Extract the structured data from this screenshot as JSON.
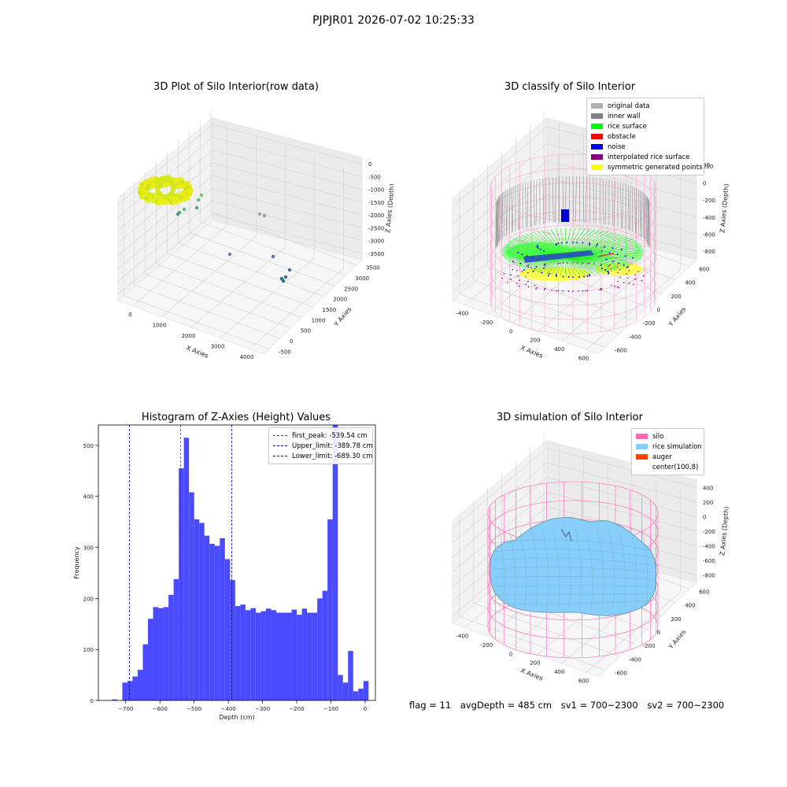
{
  "suptitle": "PJPJR01 2026-07-02 10:25:33",
  "footer": {
    "flag": "flag = 11",
    "avg_depth": "avgDepth = 485 cm",
    "sv1": "sv1 = 700~2300",
    "sv2": "sv2 = 700~2300"
  },
  "colors": {
    "histogram_bar": "#4a4aff",
    "first_peak": "#ff0000",
    "limits": "#0000aa",
    "silo": "#ff69b4",
    "rice_sim": "#87cefa",
    "auger": "#ff4500",
    "grid_pane": "#f2f2f2"
  },
  "chart_data": [
    {
      "type": "scatter3d",
      "title": "3D Plot of Silo Interior(row data)",
      "xlabel": "X Axies",
      "ylabel": "Y Axies",
      "zlabel": "Z Axies (Depth)",
      "x_ticks": [
        "0",
        "1000",
        "2000",
        "3000",
        "4000"
      ],
      "y_ticks": [
        "-500",
        "0",
        "500",
        "1000",
        "1500",
        "2000",
        "2500",
        "3000",
        "3500"
      ],
      "z_ticks": [
        "0",
        "-500",
        "-1000",
        "-1500",
        "-2000",
        "-2500",
        "-3000",
        "-3500"
      ]
    },
    {
      "type": "scatter3d",
      "title": "3D classify of Silo Interior",
      "xlabel": "X Axies",
      "ylabel": "Y Axies",
      "zlabel": "Z Axies (Depth)",
      "x_ticks": [
        "-400",
        "-200",
        "0",
        "200",
        "400",
        "600"
      ],
      "y_ticks": [
        "-600",
        "-400",
        "-200",
        "0",
        "200",
        "400",
        "600"
      ],
      "z_ticks": [
        "200",
        "0",
        "-200",
        "-400",
        "-600",
        "-800"
      ],
      "z_top_tick": "00",
      "legend": [
        {
          "label": "original data",
          "color": "#b0b0b0"
        },
        {
          "label": "inner wall",
          "color": "#808080"
        },
        {
          "label": "rice surface",
          "color": "#00ff00"
        },
        {
          "label": "obstacle",
          "color": "#ff0000"
        },
        {
          "label": "noise",
          "color": "#0000ee"
        },
        {
          "label": "interpolated rice surface",
          "color": "#800080"
        },
        {
          "label": "symmetric generated points",
          "color": "#ffff00"
        }
      ]
    },
    {
      "type": "bar",
      "title": "Histogram of Z-Axies (Height) Values",
      "xlabel": "Depth (cm)",
      "ylabel": "Frequency",
      "xlim": [
        -780,
        30
      ],
      "ylim": [
        0,
        540
      ],
      "bin_width": 15,
      "x_ticks": [
        -700,
        -600,
        -500,
        -400,
        -300,
        -200,
        -100,
        0
      ],
      "y_ticks": [
        0,
        100,
        200,
        300,
        400,
        500
      ],
      "bin_starts": [
        -740,
        -725,
        -710,
        -695,
        -680,
        -665,
        -650,
        -635,
        -620,
        -605,
        -590,
        -575,
        -560,
        -545,
        -530,
        -515,
        -500,
        -485,
        -470,
        -455,
        -440,
        -425,
        -410,
        -395,
        -380,
        -365,
        -350,
        -335,
        -320,
        -305,
        -290,
        -275,
        -260,
        -245,
        -230,
        -215,
        -200,
        -185,
        -170,
        -155,
        -140,
        -125,
        -110,
        -95,
        -80,
        -65,
        -50,
        -35,
        -20,
        -5
      ],
      "values": [
        2,
        0,
        35,
        38,
        47,
        60,
        110,
        160,
        183,
        181,
        183,
        207,
        238,
        455,
        515,
        408,
        355,
        348,
        323,
        307,
        303,
        318,
        277,
        236,
        185,
        188,
        177,
        181,
        172,
        175,
        180,
        177,
        172,
        172,
        172,
        178,
        168,
        180,
        172,
        172,
        200,
        215,
        355,
        545,
        50,
        35,
        97,
        18,
        23,
        38
      ],
      "vlines": [
        {
          "label": "first_peak: -539.54 cm",
          "x": -539.54,
          "color": "#ff0000"
        },
        {
          "label": "Upper_limit: -389.78 cm",
          "x": -389.78,
          "color": "#0000aa"
        },
        {
          "label": "Lower_limit: -689.30 cm",
          "x": -689.3,
          "color": "#0000aa"
        }
      ]
    },
    {
      "type": "surface3d",
      "title": "3D simulation of Silo Interior",
      "xlabel": "X Axies",
      "ylabel": "Y Axies",
      "zlabel": "Z Axies (Depth)",
      "x_ticks": [
        "-400",
        "-200",
        "0",
        "200",
        "400",
        "600"
      ],
      "y_ticks": [
        "-600",
        "-400",
        "-200",
        "0",
        "200",
        "400",
        "600"
      ],
      "z_ticks": [
        "400",
        "200",
        "0",
        "-200",
        "-400",
        "-600",
        "-800"
      ],
      "legend": [
        {
          "label": "silo",
          "color": "#ff69b4"
        },
        {
          "label": "rice simulation",
          "color": "#87cefa"
        },
        {
          "label": "auger",
          "color": "#ff4500"
        },
        {
          "label": "center(100,8)",
          "color": "#ffffff"
        }
      ]
    }
  ]
}
